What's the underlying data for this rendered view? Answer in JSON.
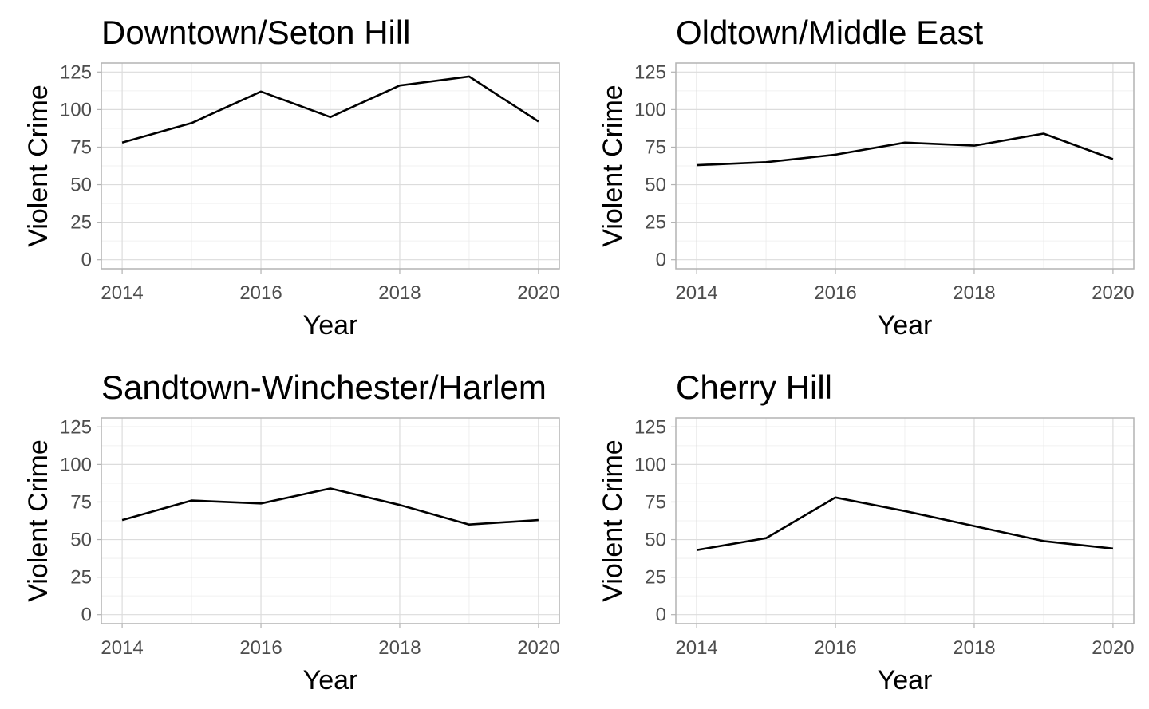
{
  "chart_data": [
    {
      "type": "line",
      "title": "Downtown/Seton Hill",
      "xlabel": "Year",
      "ylabel": "Violent Crime",
      "x": [
        2014,
        2015,
        2016,
        2017,
        2018,
        2019,
        2020
      ],
      "series": [
        {
          "values": [
            78,
            91,
            112,
            95,
            116,
            122,
            92
          ]
        }
      ],
      "xlim": [
        2013.7,
        2020.3
      ],
      "ylim": [
        -6,
        131
      ],
      "xticks": [
        2014,
        2016,
        2018,
        2020
      ],
      "xtick_labels": [
        "2014",
        "2016",
        "2018",
        "2020"
      ],
      "yticks": [
        0,
        25,
        50,
        75,
        100,
        125
      ],
      "ytick_labels": [
        "0",
        "25",
        "50",
        "75",
        "100",
        "125"
      ],
      "grid": true
    },
    {
      "type": "line",
      "title": "Oldtown/Middle East",
      "xlabel": "Year",
      "ylabel": "Violent Crime",
      "x": [
        2014,
        2015,
        2016,
        2017,
        2018,
        2019,
        2020
      ],
      "series": [
        {
          "values": [
            63,
            65,
            70,
            78,
            76,
            84,
            67
          ]
        }
      ],
      "xlim": [
        2013.7,
        2020.3
      ],
      "ylim": [
        -6,
        131
      ],
      "xticks": [
        2014,
        2016,
        2018,
        2020
      ],
      "xtick_labels": [
        "2014",
        "2016",
        "2018",
        "2020"
      ],
      "yticks": [
        0,
        25,
        50,
        75,
        100,
        125
      ],
      "ytick_labels": [
        "0",
        "25",
        "50",
        "75",
        "100",
        "125"
      ],
      "grid": true
    },
    {
      "type": "line",
      "title": "Sandtown-Winchester/Harlem",
      "xlabel": "Year",
      "ylabel": "Violent Crime",
      "x": [
        2014,
        2015,
        2016,
        2017,
        2018,
        2019,
        2020
      ],
      "series": [
        {
          "values": [
            63,
            76,
            74,
            84,
            73,
            60,
            63
          ]
        }
      ],
      "xlim": [
        2013.7,
        2020.3
      ],
      "ylim": [
        -6,
        131
      ],
      "xticks": [
        2014,
        2016,
        2018,
        2020
      ],
      "xtick_labels": [
        "2014",
        "2016",
        "2018",
        "2020"
      ],
      "yticks": [
        0,
        25,
        50,
        75,
        100,
        125
      ],
      "ytick_labels": [
        "0",
        "25",
        "50",
        "75",
        "100",
        "125"
      ],
      "grid": true
    },
    {
      "type": "line",
      "title": "Cherry Hill",
      "xlabel": "Year",
      "ylabel": "Violent Crime",
      "x": [
        2014,
        2015,
        2016,
        2017,
        2018,
        2019,
        2020
      ],
      "series": [
        {
          "values": [
            43,
            51,
            78,
            69,
            59,
            49,
            44
          ]
        }
      ],
      "xlim": [
        2013.7,
        2020.3
      ],
      "ylim": [
        -6,
        131
      ],
      "xticks": [
        2014,
        2016,
        2018,
        2020
      ],
      "xtick_labels": [
        "2014",
        "2016",
        "2018",
        "2020"
      ],
      "yticks": [
        0,
        25,
        50,
        75,
        100,
        125
      ],
      "ytick_labels": [
        "0",
        "25",
        "50",
        "75",
        "100",
        "125"
      ],
      "grid": true
    }
  ],
  "colors": {
    "line": "#000000",
    "panel_border": "#b3b3b3",
    "grid_major": "#dcdcdc",
    "grid_minor": "#ececec",
    "tick_label": "#4d4d4d",
    "background": "#ffffff"
  }
}
